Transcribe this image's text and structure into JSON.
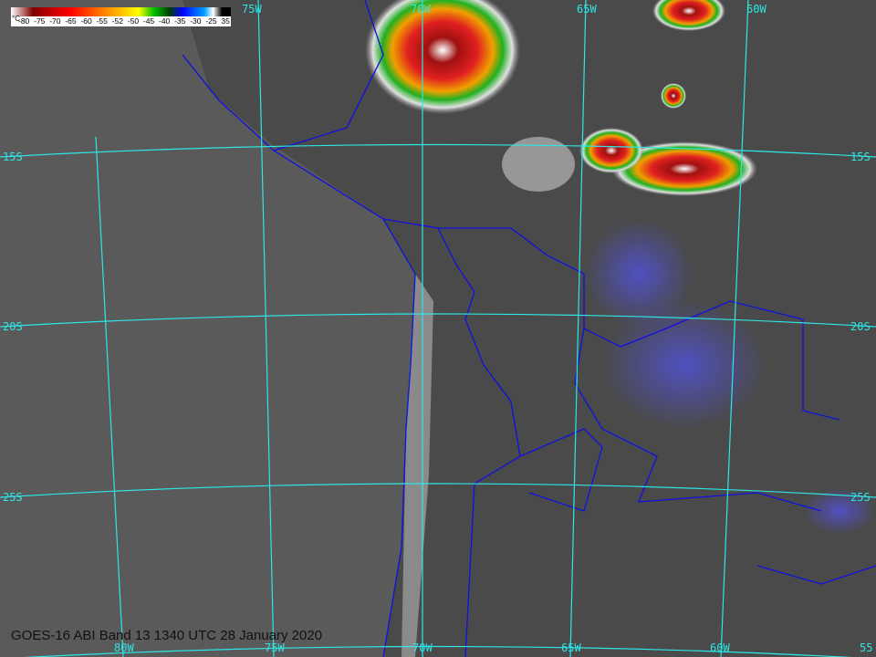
{
  "colorbar": {
    "unit": "°C",
    "ticks": [
      "-80",
      "-75",
      "-70",
      "-65",
      "-60",
      "-55",
      "-52",
      "-50",
      "-45",
      "-40",
      "-35",
      "-30",
      "-25",
      "35"
    ]
  },
  "caption": "GOES-16 ABI Band 13 1340 UTC 28 January 2020",
  "grid": {
    "top_labels": [
      "75W",
      "70W",
      "65W",
      "60W"
    ],
    "bottom_labels": [
      "80W",
      "75W",
      "70W",
      "65W",
      "60W",
      "55"
    ],
    "left_labels": [
      "15S",
      "20S",
      "25S"
    ],
    "right_labels": [
      "15S",
      "20S",
      "25S"
    ]
  },
  "colors": {
    "grid": "#2ee6e6",
    "borders": "#1010e0",
    "background": "#555555"
  }
}
